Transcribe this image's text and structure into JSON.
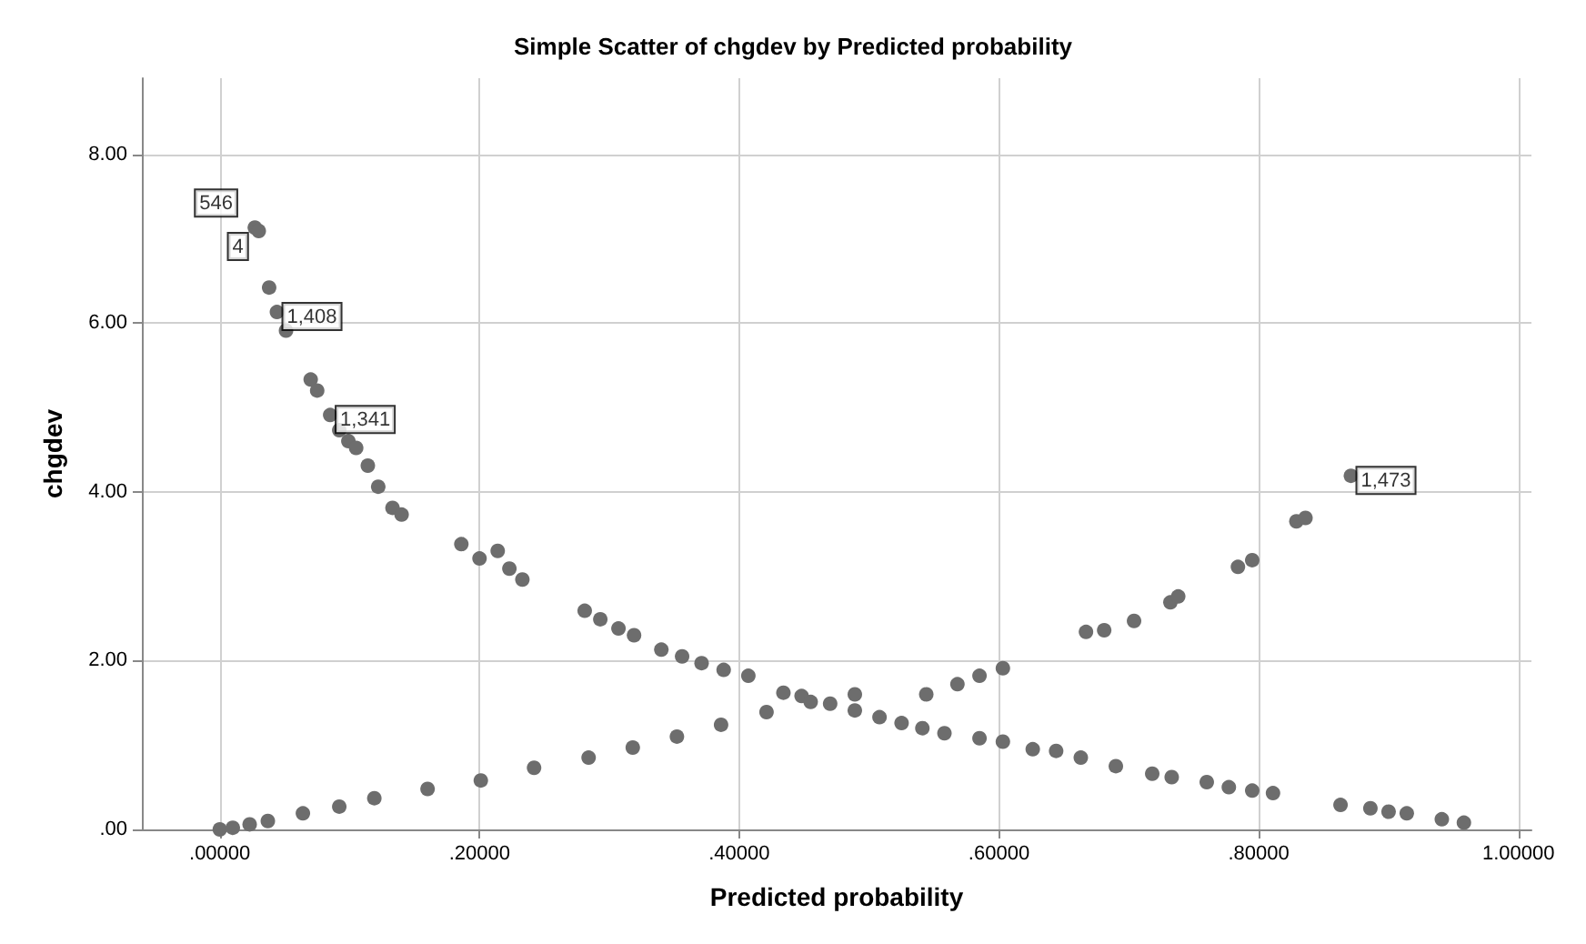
{
  "chart_data": {
    "type": "scatter",
    "title": "Simple Scatter of chgdev by Predicted probability",
    "xlabel": "Predicted probability",
    "ylabel": "chgdev",
    "xlim": [
      -0.06,
      1.01
    ],
    "ylim": [
      0,
      8.9
    ],
    "xticks": [
      {
        "value": 0,
        "label": ".00000"
      },
      {
        "value": 0.2,
        "label": ".20000"
      },
      {
        "value": 0.4,
        "label": ".40000"
      },
      {
        "value": 0.6,
        "label": ".60000"
      },
      {
        "value": 0.8,
        "label": ".80000"
      },
      {
        "value": 1,
        "label": "1.00000"
      }
    ],
    "yticks": [
      {
        "value": 0,
        "label": ".00"
      },
      {
        "value": 2,
        "label": "2.00"
      },
      {
        "value": 4,
        "label": "4.00"
      },
      {
        "value": 6,
        "label": "6.00"
      },
      {
        "value": 8,
        "label": "8.00"
      }
    ],
    "grid": true,
    "marker": "circle",
    "series": [
      {
        "color": "#6d6d6d",
        "x": [
          0.027,
          0.03,
          0.038,
          0.044,
          0.051,
          0.07,
          0.075,
          0.085,
          0.092,
          0.099,
          0.105,
          0.114,
          0.122,
          0.133,
          0.14,
          0.186,
          0.2,
          0.214,
          0.223,
          0.233,
          0.281,
          0.293,
          0.307,
          0.319,
          0.34,
          0.356,
          0.371,
          0.388,
          0.407,
          0.434,
          0.448,
          0.47,
          0.489,
          0.508,
          0.525,
          0.541,
          0.558,
          0.585,
          0.603,
          0.626,
          0.644,
          0.663,
          0.69,
          0.718,
          0.733,
          0.76,
          0.777,
          0.795,
          0.811,
          0.863,
          0.886,
          0.9,
          0.914,
          0.941,
          0.958,
          0,
          0.01,
          0.023,
          0.037,
          0.064,
          0.092,
          0.119,
          0.16,
          0.201,
          0.242,
          0.284,
          0.318,
          0.352,
          0.386,
          0.421,
          0.455,
          0.489,
          0.544,
          0.568,
          0.585,
          0.603,
          0.667,
          0.681,
          0.704,
          0.732,
          0.738,
          0.784,
          0.795,
          0.829,
          0.836,
          0.871
        ],
        "values": [
          7.13,
          7.09,
          6.42,
          6.13,
          5.91,
          5.33,
          5.2,
          4.91,
          4.73,
          4.6,
          4.52,
          4.31,
          4.06,
          3.81,
          3.73,
          3.38,
          3.21,
          3.3,
          3.09,
          2.96,
          2.59,
          2.49,
          2.38,
          2.3,
          2.13,
          2.05,
          1.97,
          1.89,
          1.82,
          1.62,
          1.58,
          1.49,
          1.41,
          1.33,
          1.26,
          1.2,
          1.14,
          1.08,
          1.04,
          0.95,
          0.93,
          0.85,
          0.75,
          0.66,
          0.62,
          0.56,
          0.5,
          0.46,
          0.43,
          0.29,
          0.25,
          0.21,
          0.19,
          0.12,
          0.08,
          0,
          0.02,
          0.06,
          0.1,
          0.19,
          0.27,
          0.37,
          0.48,
          0.58,
          0.73,
          0.85,
          0.97,
          1.1,
          1.24,
          1.39,
          1.51,
          1.6,
          1.6,
          1.72,
          1.82,
          1.91,
          2.34,
          2.36,
          2.47,
          2.69,
          2.76,
          3.11,
          3.19,
          3.65,
          3.69,
          4.19
        ]
      }
    ],
    "annotations": [
      {
        "text": "546",
        "x": 0.027,
        "y": 7.13
      },
      {
        "text": "4",
        "x": 0.03,
        "y": 7.09
      },
      {
        "text": "1,408",
        "x": 0.044,
        "y": 6.13
      },
      {
        "text": "1,341",
        "x": 0.085,
        "y": 4.91
      },
      {
        "text": "1,473",
        "x": 0.871,
        "y": 4.19
      }
    ]
  }
}
